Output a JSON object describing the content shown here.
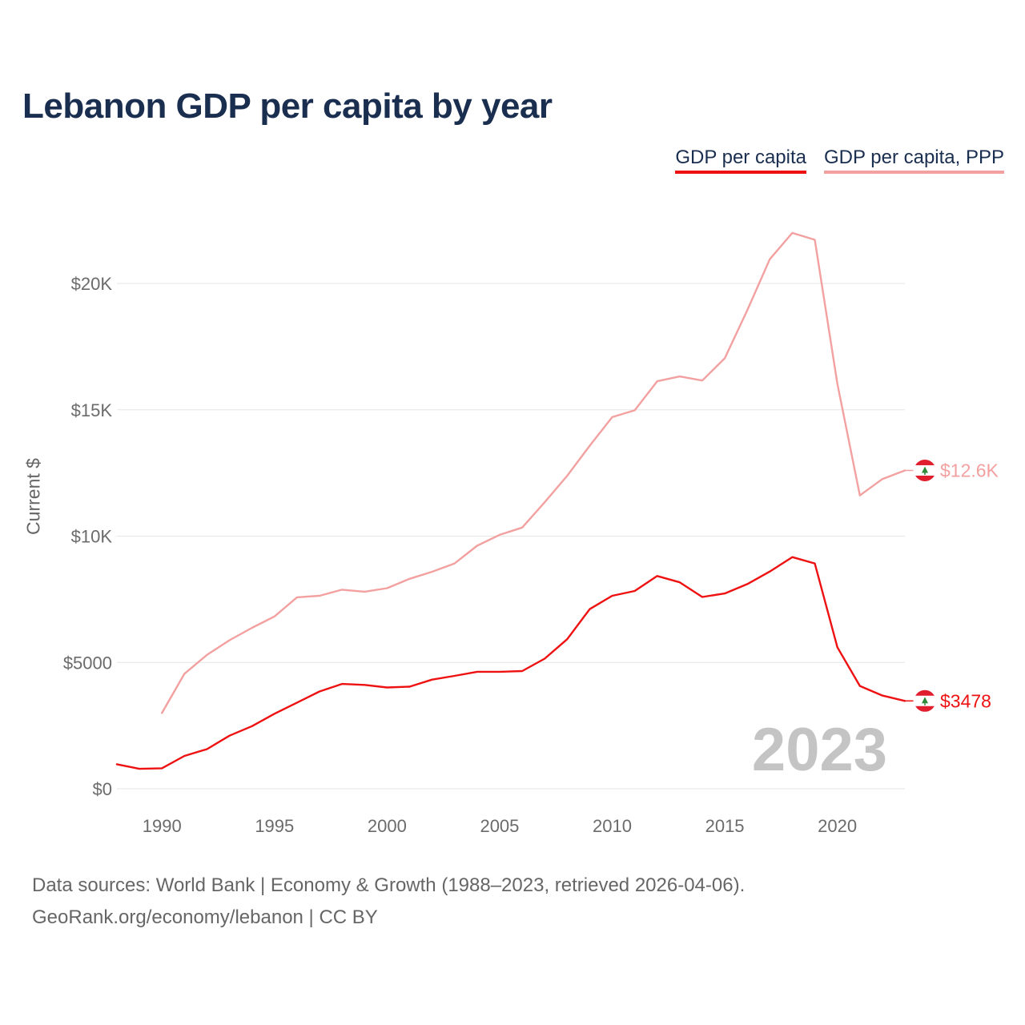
{
  "title": "Lebanon GDP per capita by year",
  "legend": [
    {
      "label": "GDP per capita",
      "color": "#ee1111"
    },
    {
      "label": "GDP per capita, PPP",
      "color": "#f3a0a0"
    }
  ],
  "ylabel": "Current $",
  "watermark_year": "2023",
  "footer": {
    "line1": "Data sources: World Bank | Economy & Growth (1988–2023, retrieved 2026-04-06).",
    "line2": "GeoRank.org/economy/lebanon | CC BY"
  },
  "chart_data": {
    "type": "line",
    "title": "Lebanon GDP per capita by year",
    "xlabel": "",
    "ylabel": "Current $",
    "xlim": [
      1988,
      2023
    ],
    "ylim": [
      0,
      22000
    ],
    "x_ticks": [
      1990,
      1995,
      2000,
      2005,
      2010,
      2015,
      2020
    ],
    "x_tick_labels": [
      "1990",
      "1995",
      "2000",
      "2005",
      "2010",
      "2015",
      "2020"
    ],
    "y_ticks": [
      0,
      5000,
      10000,
      15000,
      20000
    ],
    "y_tick_labels": [
      "$0",
      "$5000",
      "$10K",
      "$15K",
      "$20K"
    ],
    "grid": true,
    "series": [
      {
        "name": "GDP per capita",
        "color": "#ee1111",
        "end_label": "$3478",
        "x": [
          1988,
          1989,
          1990,
          1991,
          1992,
          1993,
          1994,
          1995,
          1996,
          1997,
          1998,
          1999,
          2000,
          2001,
          2002,
          2003,
          2004,
          2005,
          2006,
          2007,
          2008,
          2009,
          2010,
          2011,
          2012,
          2013,
          2014,
          2015,
          2016,
          2017,
          2018,
          2019,
          2020,
          2021,
          2022,
          2023
        ],
        "y": [
          970,
          790,
          810,
          1300,
          1570,
          2100,
          2480,
          2970,
          3410,
          3850,
          4150,
          4110,
          4010,
          4040,
          4320,
          4470,
          4630,
          4630,
          4660,
          5150,
          5920,
          7110,
          7640,
          7830,
          8420,
          8170,
          7590,
          7730,
          8100,
          8600,
          9170,
          8920,
          5600,
          4070,
          3690,
          3478
        ]
      },
      {
        "name": "GDP per capita, PPP",
        "color": "#f3a0a0",
        "end_label": "$12.6K",
        "x": [
          1990,
          1991,
          1992,
          1993,
          1994,
          1995,
          1996,
          1997,
          1998,
          1999,
          2000,
          2001,
          2002,
          2003,
          2004,
          2005,
          2006,
          2007,
          2008,
          2009,
          2010,
          2011,
          2012,
          2013,
          2014,
          2015,
          2016,
          2017,
          2018,
          2019,
          2020,
          2021,
          2022,
          2023
        ],
        "y": [
          3000,
          4550,
          5300,
          5880,
          6370,
          6820,
          7580,
          7640,
          7880,
          7800,
          7940,
          8310,
          8590,
          8920,
          9620,
          10050,
          10340,
          11340,
          12390,
          13580,
          14710,
          14980,
          16130,
          16320,
          16160,
          17040,
          18940,
          20960,
          22000,
          21730,
          16030,
          11610,
          12260,
          12600
        ]
      }
    ]
  }
}
